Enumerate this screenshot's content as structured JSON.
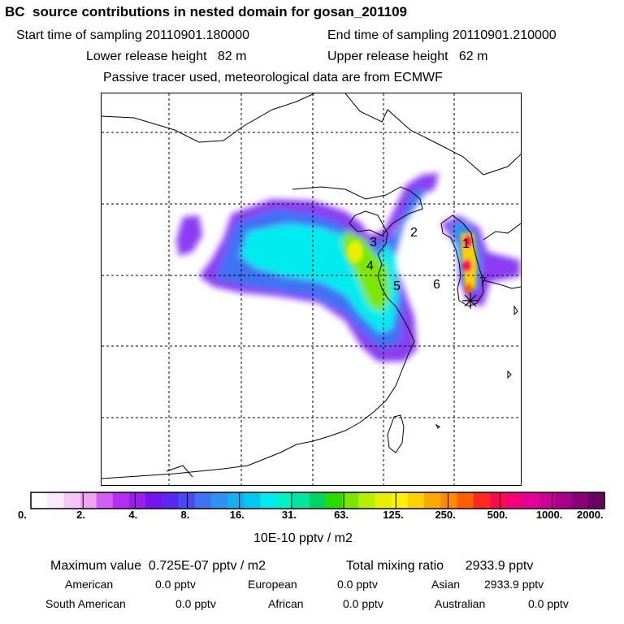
{
  "header": {
    "title": "BC  source contributions in nested domain for gosan_201109",
    "start_time": "Start time of sampling 20110901.180000",
    "end_time": "End time of sampling 20110901.210000",
    "lower_release": "Lower release height   82 m",
    "upper_release": "Upper release height   62 m",
    "tracer_note": "Passive tracer used, meteorological data are from ECMWF"
  },
  "map": {
    "region_labels": [
      "1",
      "2",
      "3",
      "4",
      "5",
      "6"
    ],
    "receptor_marker": "star-icon"
  },
  "colorbar": {
    "tick_labels": [
      "0.",
      "2.",
      "4.",
      "8.",
      "16.",
      "31.",
      "63.",
      "125.",
      "250.",
      "500.",
      "1000.",
      "2000."
    ],
    "unit_label": "10E-10 pptv / m2",
    "colors": [
      "#ffffff",
      "#fde9fd",
      "#f7c6f7",
      "#f0a3f0",
      "#d25ef3",
      "#b42df3",
      "#9d1cf0",
      "#7414f0",
      "#5a28f2",
      "#4a4af5",
      "#3f72f5",
      "#2c93f2",
      "#1aaef0",
      "#00c8f5",
      "#00ebef",
      "#00f2c8",
      "#00e8a0",
      "#00d65f",
      "#28dc00",
      "#7de600",
      "#b4f000",
      "#e6f000",
      "#fff200",
      "#ffd200",
      "#ffaa00",
      "#ff8a00",
      "#ff5f00",
      "#ff2a1e",
      "#ff0a4e",
      "#f5007a",
      "#e6009a",
      "#cc0096",
      "#a8008c",
      "#8a0078",
      "#6a0060"
    ]
  },
  "footer": {
    "max_value": "Maximum value  0.725E-07 pptv / m2",
    "total_mixing": "Total mixing ratio      2933.9 pptv",
    "american": "American",
    "american_val": "0.0 pptv",
    "european": "European",
    "european_val": "0.0 pptv",
    "asian": "Asian",
    "asian_val": "2933.9 pptv",
    "south_american": "South American",
    "south_american_val": "0.0 pptv",
    "african": "African",
    "african_val": "0.0 pptv",
    "australian": "Australian",
    "australian_val": "0.0 pptv"
  }
}
